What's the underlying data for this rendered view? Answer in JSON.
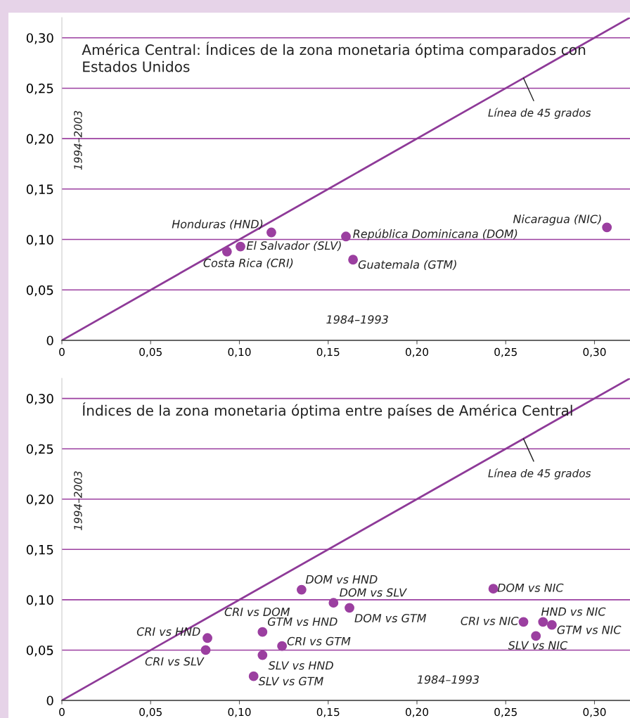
{
  "chart_data": [
    {
      "type": "scatter",
      "title": "América Central: Índices de la zona monetaria óptima comparados con Estados Unidos",
      "xlabel": "1984–1993",
      "ylabel": "1994–2003",
      "xlim": [
        0,
        0.32
      ],
      "ylim": [
        0,
        0.32
      ],
      "xticks": [
        {
          "value": 0,
          "label": "0"
        },
        {
          "value": 0.05,
          "label": "0,05"
        },
        {
          "value": 0.1,
          "label": "0,10"
        },
        {
          "value": 0.15,
          "label": "0,15"
        },
        {
          "value": 0.2,
          "label": "0,20"
        },
        {
          "value": 0.25,
          "label": "0,25"
        },
        {
          "value": 0.3,
          "label": "0,30"
        }
      ],
      "yticks": [
        {
          "value": 0,
          "label": "0"
        },
        {
          "value": 0.05,
          "label": "0,05"
        },
        {
          "value": 0.1,
          "label": "0,10"
        },
        {
          "value": 0.15,
          "label": "0,15"
        },
        {
          "value": 0.2,
          "label": "0,20"
        },
        {
          "value": 0.25,
          "label": "0,25"
        },
        {
          "value": 0.3,
          "label": "0,30"
        }
      ],
      "grid": "y",
      "legend": false,
      "marker": "circle",
      "series": [
        {
          "type": "line",
          "marker": "none",
          "color": "#8e3a98",
          "x": [
            0,
            0.32
          ],
          "values": [
            0,
            0.32
          ]
        },
        {
          "name": "Honduras (HND)",
          "color": "#9b3fa0",
          "x": [
            0.118
          ],
          "values": [
            0.107
          ]
        },
        {
          "name": "El Salvador (SLV)",
          "color": "#9b3fa0",
          "x": [
            0.1006
          ],
          "values": [
            0.093
          ]
        },
        {
          "name": "Costa Rica (CRI)",
          "color": "#9b3fa0",
          "x": [
            0.093
          ],
          "values": [
            0.088
          ]
        },
        {
          "name": "República Dominicana (DOM)",
          "color": "#9b3fa0",
          "x": [
            0.16
          ],
          "values": [
            0.103
          ]
        },
        {
          "name": "Guatemala (GTM)",
          "color": "#9b3fa0",
          "x": [
            0.164
          ],
          "values": [
            0.08
          ]
        },
        {
          "name": "Nicaragua (NIC)",
          "color": "#9b3fa0",
          "x": [
            0.307
          ],
          "values": [
            0.112
          ]
        }
      ],
      "annotations": [
        {
          "text": "Línea de 45 grados",
          "x": 0.26,
          "y": 0.26
        }
      ]
    },
    {
      "type": "scatter",
      "title": "Índices de la zona monetaria óptima entre países de América Central",
      "xlabel": "1984–1993",
      "ylabel": "1994–2003",
      "xlim": [
        0,
        0.32
      ],
      "ylim": [
        0,
        0.32
      ],
      "xticks": [
        {
          "value": 0,
          "label": "0"
        },
        {
          "value": 0.05,
          "label": "0,05"
        },
        {
          "value": 0.1,
          "label": "0,10"
        },
        {
          "value": 0.15,
          "label": "0,15"
        },
        {
          "value": 0.2,
          "label": "0,20"
        },
        {
          "value": 0.25,
          "label": "0,25"
        },
        {
          "value": 0.3,
          "label": "0,30"
        }
      ],
      "yticks": [
        {
          "value": 0,
          "label": "0"
        },
        {
          "value": 0.05,
          "label": "0,05"
        },
        {
          "value": 0.1,
          "label": "0,10"
        },
        {
          "value": 0.15,
          "label": "0,15"
        },
        {
          "value": 0.2,
          "label": "0,20"
        },
        {
          "value": 0.25,
          "label": "0,25"
        },
        {
          "value": 0.3,
          "label": "0,30"
        }
      ],
      "grid": "y",
      "legend": false,
      "marker": "circle",
      "series": [
        {
          "type": "line",
          "marker": "none",
          "color": "#8e3a98",
          "x": [
            0,
            0.32
          ],
          "values": [
            0,
            0.32
          ]
        },
        {
          "name": "DOM vs HND",
          "color": "#9b3fa0",
          "x": [
            0.135
          ],
          "values": [
            0.11
          ]
        },
        {
          "name": "DOM vs SLV",
          "color": "#9b3fa0",
          "x": [
            0.153
          ],
          "values": [
            0.097
          ]
        },
        {
          "name": "DOM vs GTM",
          "color": "#9b3fa0",
          "x": [
            0.162
          ],
          "values": [
            0.092
          ]
        },
        {
          "name": "DOM vs NIC",
          "color": "#9b3fa0",
          "x": [
            0.243
          ],
          "values": [
            0.111
          ]
        },
        {
          "name": "CRI vs NIC",
          "color": "#9b3fa0",
          "x": [
            0.26
          ],
          "values": [
            0.078
          ]
        },
        {
          "name": "HND vs NIC",
          "color": "#9b3fa0",
          "x": [
            0.271
          ],
          "values": [
            0.078
          ]
        },
        {
          "name": "GTM vs NIC",
          "color": "#9b3fa0",
          "x": [
            0.276
          ],
          "values": [
            0.075
          ]
        },
        {
          "name": "SLV vs NIC",
          "color": "#9b3fa0",
          "x": [
            0.267
          ],
          "values": [
            0.064
          ]
        },
        {
          "name": "CRI vs HND",
          "color": "#9b3fa0",
          "x": [
            0.082
          ],
          "values": [
            0.062
          ]
        },
        {
          "name": "CRI vs SLV",
          "color": "#9b3fa0",
          "x": [
            0.081
          ],
          "values": [
            0.05
          ]
        },
        {
          "name": "GTM vs HND",
          "color": "#9b3fa0",
          "x": [
            0.113
          ],
          "values": [
            0.068
          ]
        },
        {
          "name": "CRI vs GTM",
          "color": "#9b3fa0",
          "x": [
            0.124
          ],
          "values": [
            0.054
          ]
        },
        {
          "name": "SLV vs HND",
          "color": "#9b3fa0",
          "x": [
            0.113
          ],
          "values": [
            0.045
          ]
        },
        {
          "name": "SLV vs GTM",
          "color": "#9b3fa0",
          "x": [
            0.108
          ],
          "values": [
            0.024
          ]
        }
      ],
      "annotations": [
        {
          "text": "Línea de 45 grados",
          "x": 0.26,
          "y": 0.26
        },
        "CRI vs DOM"
      ]
    }
  ]
}
